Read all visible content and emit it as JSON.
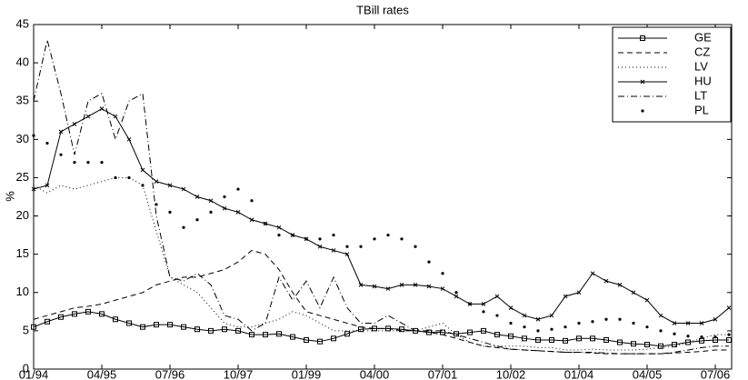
{
  "chart_data": {
    "type": "line",
    "title": "TBill rates",
    "y_label": "%",
    "categories": [
      "01/94",
      null,
      null,
      null,
      null,
      "04/95",
      null,
      null,
      null,
      null,
      "07/96",
      null,
      null,
      null,
      null,
      "10/97",
      null,
      null,
      null,
      null,
      "01/99",
      null,
      null,
      null,
      null,
      "04/00",
      null,
      null,
      null,
      null,
      "07/01",
      null,
      null,
      null,
      null,
      "10/02",
      null,
      null,
      null,
      null,
      "01/04",
      null,
      null,
      null,
      null,
      "04/05",
      null,
      null,
      null,
      null,
      "07/06",
      null
    ],
    "ylim": [
      0,
      45
    ],
    "yticks": [
      0,
      5,
      10,
      15,
      20,
      25,
      30,
      35,
      40,
      45
    ],
    "legend": "upper right",
    "series": [
      {
        "name": "GE",
        "color": "#000000",
        "linestyle": "solid",
        "marker": "square",
        "values": [
          5.5,
          6.2,
          6.8,
          7.2,
          7.5,
          7.2,
          6.5,
          6,
          5.5,
          5.8,
          5.8,
          5.5,
          5.2,
          5,
          5.2,
          5,
          4.5,
          4.5,
          4.6,
          4.2,
          3.8,
          3.6,
          4,
          4.6,
          5.2,
          5.3,
          5.3,
          5.2,
          5,
          4.8,
          4.8,
          4.6,
          4.8,
          5,
          4.5,
          4.3,
          4,
          3.8,
          3.8,
          3.7,
          4,
          4,
          3.8,
          3.5,
          3.3,
          3.2,
          3,
          3.2,
          3.5,
          3.7,
          3.8,
          3.8
        ]
      },
      {
        "name": "CZ",
        "color": "#000000",
        "linestyle": "dashed",
        "marker": null,
        "values": [
          6.5,
          7,
          7.5,
          8,
          8.2,
          8.5,
          9,
          9.5,
          10,
          11,
          11.5,
          12,
          12,
          12.5,
          13,
          14,
          15.5,
          15,
          13,
          10,
          7.5,
          7,
          6.5,
          6,
          5.5,
          5.3,
          5.3,
          5,
          5,
          4.8,
          4.5,
          4,
          3.5,
          3,
          2.8,
          2.6,
          2.5,
          2.4,
          2.3,
          2.2,
          2.2,
          2.1,
          2,
          2,
          2,
          2,
          2,
          2.1,
          2.2,
          2.3,
          2.5,
          2.5
        ]
      },
      {
        "name": "LV",
        "color": "#000000",
        "linestyle": "dotted",
        "marker": null,
        "values": [
          24,
          23,
          24,
          23.5,
          24,
          24.5,
          25,
          25,
          24,
          18,
          12,
          11,
          10,
          8,
          6,
          5.5,
          5.5,
          6,
          6.5,
          7.5,
          7,
          6,
          5,
          5,
          5,
          5,
          5,
          5,
          5,
          5.5,
          6,
          4.5,
          3.5,
          3,
          3,
          3,
          3,
          2.8,
          2.8,
          2.5,
          2.5,
          2.6,
          2.5,
          2.5,
          2.5,
          2.6,
          2.8,
          3,
          3.5,
          4,
          4.5,
          4.5
        ]
      },
      {
        "name": "HU",
        "color": "#000000",
        "linestyle": "solid",
        "marker": "x",
        "values": [
          23.5,
          24,
          31,
          32,
          33,
          34,
          33,
          30,
          26,
          24.5,
          24,
          23.5,
          22.5,
          22,
          21,
          20.5,
          19.5,
          19,
          18.5,
          17.5,
          17,
          16,
          15.5,
          15,
          11,
          10.8,
          10.5,
          11,
          11,
          10.8,
          10.5,
          9.5,
          8.5,
          8.5,
          9.5,
          8,
          7,
          6.5,
          7,
          9.5,
          10,
          12.5,
          11.5,
          11,
          10,
          9,
          7,
          6,
          6,
          6,
          6.5,
          8
        ]
      },
      {
        "name": "LT",
        "color": "#000000",
        "linestyle": "dashdot",
        "marker": null,
        "values": [
          35,
          43,
          36,
          28,
          35,
          36,
          30,
          35,
          36,
          20,
          12,
          11.5,
          12.5,
          11,
          7,
          6.5,
          5,
          6,
          12,
          9,
          11.5,
          8,
          12,
          8,
          6,
          6,
          7,
          6,
          5,
          5,
          5,
          4.5,
          4,
          3.5,
          3,
          2.6,
          2.5,
          2.4,
          2.3,
          2.2,
          2.2,
          2.2,
          2.1,
          2,
          2,
          2,
          2,
          2.2,
          2.5,
          2.8,
          3,
          3
        ]
      },
      {
        "name": "PL",
        "color": "#000000",
        "linestyle": "none",
        "marker": "dot",
        "values": [
          30.5,
          29.5,
          28,
          27,
          27,
          27,
          25,
          25,
          24,
          21.5,
          20.5,
          18.5,
          19.5,
          20.5,
          22.5,
          23.5,
          22,
          19,
          17.5,
          17.5,
          17,
          17,
          17.5,
          16,
          16,
          17,
          17.5,
          17,
          16,
          14,
          12.5,
          10,
          8.5,
          7.5,
          7,
          6,
          5.5,
          5,
          5.2,
          5.5,
          6,
          6.2,
          6.5,
          6.5,
          6,
          5.5,
          5,
          4.6,
          4.3,
          4.2,
          4.2,
          4.5
        ]
      }
    ]
  }
}
